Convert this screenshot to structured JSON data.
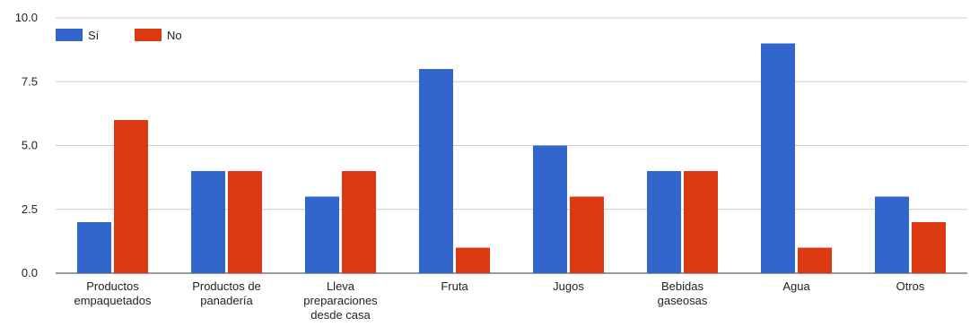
{
  "chart_data": {
    "type": "bar",
    "categories": [
      [
        "Productos",
        "empaquetados"
      ],
      [
        "Productos de",
        "panadería"
      ],
      [
        "Lleva",
        "preparaciones",
        "desde casa"
      ],
      [
        "Fruta"
      ],
      [
        "Jugos"
      ],
      [
        "Bebidas",
        "gaseosas"
      ],
      [
        "Agua"
      ],
      [
        "Otros"
      ]
    ],
    "series": [
      {
        "name": "Sí",
        "color": "#3366cc",
        "values": [
          2,
          4,
          3,
          8,
          5,
          4,
          9,
          3
        ]
      },
      {
        "name": "No",
        "color": "#dc3912",
        "values": [
          6,
          4,
          4,
          1,
          3,
          4,
          1,
          2
        ]
      }
    ],
    "yticks": [
      "0.0",
      "2.5",
      "5.0",
      "7.5",
      "10.0"
    ],
    "ylim": [
      0,
      10
    ],
    "grid": true,
    "legend_position": "top-left"
  }
}
